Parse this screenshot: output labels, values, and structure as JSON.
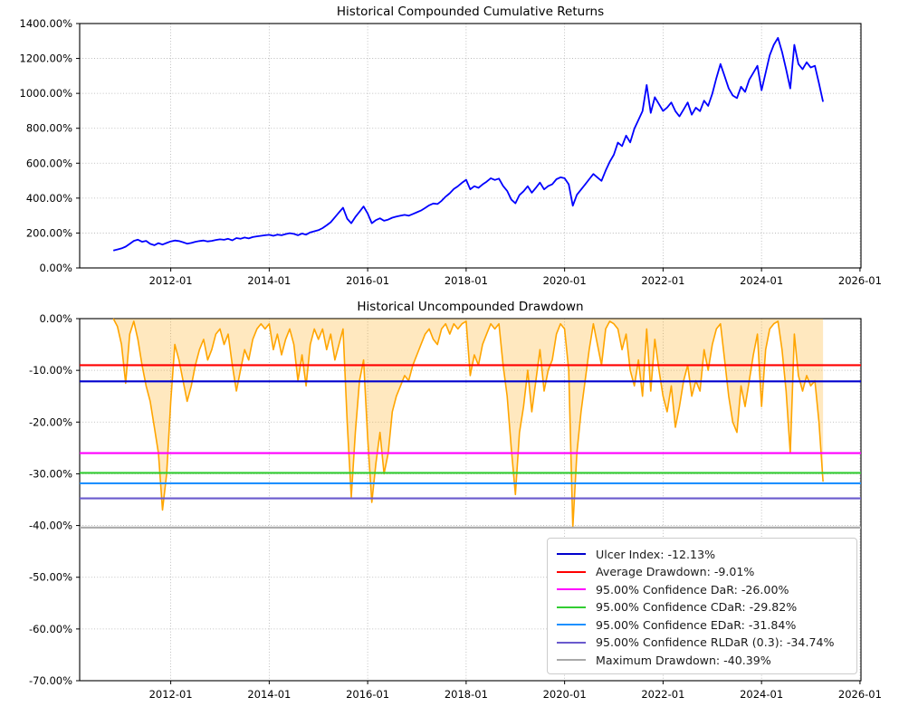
{
  "figure": {
    "background": "#ffffff",
    "grid_color": "#b0b0b0",
    "axis_color": "#000000"
  },
  "chart_data": [
    {
      "type": "line",
      "title": "Historical Compounded Cumulative Returns",
      "grid": true,
      "legend_position": "none",
      "xlim": [
        2010.15,
        2026.02
      ],
      "ylim": [
        0,
        1400
      ],
      "xticks": [
        {
          "t": 2012,
          "label": "2012-01"
        },
        {
          "t": 2014,
          "label": "2014-01"
        },
        {
          "t": 2016,
          "label": "2016-01"
        },
        {
          "t": 2018,
          "label": "2018-01"
        },
        {
          "t": 2020,
          "label": "2020-01"
        },
        {
          "t": 2022,
          "label": "2022-01"
        },
        {
          "t": 2024,
          "label": "2024-01"
        },
        {
          "t": 2026,
          "label": "2026-01"
        }
      ],
      "yticks": [
        {
          "v": 0,
          "label": "0.00%"
        },
        {
          "v": 200,
          "label": "200.00%"
        },
        {
          "v": 400,
          "label": "400.00%"
        },
        {
          "v": 600,
          "label": "600.00%"
        },
        {
          "v": 800,
          "label": "800.00%"
        },
        {
          "v": 1000,
          "label": "1000.00%"
        },
        {
          "v": 1200,
          "label": "1200.00%"
        },
        {
          "v": 1400,
          "label": "1400.00%"
        }
      ],
      "series": [
        {
          "name": "Compounded Cumulative Returns",
          "color": "#0000ff",
          "line_width": 1.8,
          "fill": null,
          "start": "2010-11",
          "freq": "monthly",
          "unit": "%",
          "values": [
            100,
            106,
            112,
            122,
            138,
            155,
            162,
            150,
            155,
            138,
            130,
            142,
            134,
            143,
            152,
            157,
            154,
            147,
            139,
            143,
            150,
            154,
            157,
            152,
            155,
            160,
            164,
            161,
            167,
            158,
            171,
            167,
            174,
            169,
            177,
            181,
            184,
            187,
            190,
            184,
            191,
            187,
            194,
            199,
            195,
            187,
            197,
            191,
            204,
            210,
            216,
            228,
            244,
            262,
            290,
            318,
            345,
            282,
            256,
            292,
            322,
            352,
            312,
            256,
            274,
            284,
            270,
            277,
            288,
            294,
            299,
            304,
            299,
            309,
            319,
            329,
            344,
            359,
            369,
            366,
            384,
            408,
            428,
            452,
            468,
            488,
            505,
            450,
            468,
            459,
            478,
            494,
            514,
            504,
            512,
            470,
            441,
            392,
            370,
            418,
            439,
            468,
            431,
            459,
            489,
            450,
            469,
            479,
            508,
            519,
            514,
            479,
            356,
            419,
            449,
            478,
            508,
            538,
            518,
            499,
            558,
            608,
            648,
            718,
            698,
            758,
            719,
            798,
            848,
            898,
            1048,
            888,
            978,
            938,
            899,
            919,
            948,
            898,
            868,
            908,
            948,
            878,
            918,
            898,
            958,
            928,
            998,
            1088,
            1168,
            1098,
            1028,
            988,
            973,
            1038,
            1008,
            1078,
            1118,
            1158,
            1018,
            1118,
            1218,
            1278,
            1318,
            1238,
            1138,
            1028,
            1278,
            1168,
            1138,
            1178,
            1148,
            1158,
            1058,
            952
          ]
        }
      ],
      "reference_lines": []
    },
    {
      "type": "area",
      "title": "Historical Uncompounded Drawdown",
      "grid": true,
      "legend_position": "lower right",
      "xlim": [
        2010.15,
        2026.02
      ],
      "ylim": [
        -70,
        0
      ],
      "xticks": [
        {
          "t": 2012,
          "label": "2012-01"
        },
        {
          "t": 2014,
          "label": "2014-01"
        },
        {
          "t": 2016,
          "label": "2016-01"
        },
        {
          "t": 2018,
          "label": "2018-01"
        },
        {
          "t": 2020,
          "label": "2020-01"
        },
        {
          "t": 2022,
          "label": "2022-01"
        },
        {
          "t": 2024,
          "label": "2024-01"
        },
        {
          "t": 2026,
          "label": "2026-01"
        }
      ],
      "yticks": [
        {
          "v": 0,
          "label": "0.00%"
        },
        {
          "v": -10,
          "label": "-10.00%"
        },
        {
          "v": -20,
          "label": "-20.00%"
        },
        {
          "v": -30,
          "label": "-30.00%"
        },
        {
          "v": -40,
          "label": "-40.00%"
        },
        {
          "v": -50,
          "label": "-50.00%"
        },
        {
          "v": -60,
          "label": "-60.00%"
        },
        {
          "v": -70,
          "label": "-70.00%"
        }
      ],
      "series": [
        {
          "name": "Uncompounded Drawdown",
          "color": "#ffa500",
          "line_width": 1.6,
          "fill": "rgba(255,165,0,0.25)",
          "fill_baseline": 0,
          "start": "2010-11",
          "freq": "monthly",
          "unit": "%",
          "values": [
            0,
            -1.5,
            -5,
            -12.5,
            -3,
            -0.5,
            -4,
            -9,
            -13,
            -16,
            -21,
            -26,
            -37,
            -30,
            -16,
            -5,
            -8,
            -12,
            -16,
            -13,
            -9,
            -6,
            -4,
            -8,
            -6,
            -3,
            -2,
            -5,
            -3,
            -9,
            -14,
            -10,
            -6,
            -8,
            -4,
            -2,
            -1,
            -2,
            -1,
            -6,
            -3,
            -7,
            -4,
            -2,
            -5,
            -12,
            -7,
            -13,
            -5,
            -2,
            -4,
            -2,
            -6,
            -3,
            -8,
            -5,
            -2,
            -20,
            -34.5,
            -22,
            -12,
            -8,
            -23,
            -35.5,
            -28,
            -22,
            -30,
            -26,
            -18,
            -15,
            -13,
            -11,
            -12,
            -9,
            -7,
            -5,
            -3,
            -2,
            -4,
            -5,
            -2,
            -1,
            -3,
            -1,
            -2,
            -1,
            -0.5,
            -11,
            -7,
            -9,
            -5,
            -3,
            -1,
            -2,
            -1,
            -9,
            -15,
            -25,
            -34,
            -22,
            -17,
            -10,
            -18,
            -12,
            -6,
            -14,
            -10,
            -8,
            -3,
            -1,
            -2,
            -10,
            -40.4,
            -26,
            -18,
            -12,
            -6,
            -1,
            -5,
            -9,
            -2,
            -0.5,
            -1,
            -2,
            -6,
            -3,
            -10,
            -13,
            -8,
            -15,
            -2,
            -14,
            -4,
            -10,
            -15,
            -18,
            -13,
            -21,
            -17,
            -12,
            -9,
            -15,
            -12,
            -14,
            -6,
            -10,
            -5,
            -2,
            -1,
            -8,
            -15,
            -20,
            -22,
            -13,
            -17,
            -12,
            -7,
            -3,
            -17,
            -6,
            -2,
            -1,
            -0.5,
            -6,
            -14,
            -26,
            -3,
            -11,
            -14,
            -11,
            -13,
            -12,
            -20,
            -31.5
          ]
        }
      ],
      "reference_lines": [
        {
          "name": "ulcer-index-line",
          "label": "Ulcer Index: -12.13%",
          "value": -12.13,
          "color": "#0000cd"
        },
        {
          "name": "avg-drawdown-line",
          "label": "Average Drawdown: -9.01%",
          "value": -9.01,
          "color": "#ff0000"
        },
        {
          "name": "dar-line",
          "label": "95.00% Confidence DaR: -26.00%",
          "value": -26.0,
          "color": "#ff00ff"
        },
        {
          "name": "cdar-line",
          "label": "95.00% Confidence CDaR: -29.82%",
          "value": -29.82,
          "color": "#32cd32"
        },
        {
          "name": "edar-line",
          "label": "95.00% Confidence EDaR: -31.84%",
          "value": -31.84,
          "color": "#1e90ff"
        },
        {
          "name": "rldar-line",
          "label": "95.00% Confidence RLDaR (0.3): -34.74%",
          "value": -34.74,
          "color": "#6a5acd"
        },
        {
          "name": "max-drawdown-line",
          "label": "Maximum Drawdown: -40.39%",
          "value": -40.39,
          "color": "#a9a9a9"
        }
      ]
    }
  ]
}
